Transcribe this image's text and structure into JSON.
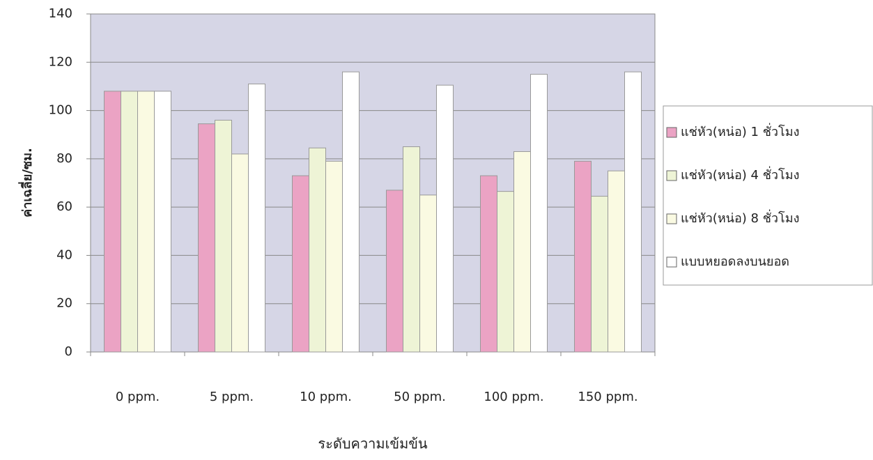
{
  "chart_data": {
    "type": "bar",
    "x_label": "ระดับความเข้มข้น",
    "y_label": "ค่าเฉลี่ย/ซม.",
    "categories": [
      "0 ppm.",
      "5 ppm.",
      "10 ppm.",
      "50 ppm.",
      "100 ppm.",
      "150 ppm."
    ],
    "series": [
      {
        "name": "แช่หัว(หน่อ) 1 ชั่วโมง",
        "color": "#eba3c4",
        "values": [
          108,
          94.5,
          73,
          67,
          73,
          79
        ]
      },
      {
        "name": "แช่หัว(หน่อ) 4 ชั่วโมง",
        "color": "#eef4d6",
        "values": [
          108,
          96,
          84.5,
          85,
          66.5,
          64.5
        ]
      },
      {
        "name": "แช่หัว(หน่อ) 8 ชั่วโมง",
        "color": "#fafae2",
        "values": [
          108,
          82,
          79,
          65,
          83,
          75
        ]
      },
      {
        "name": "แบบหยอดลงบนยอด",
        "color": "#ffffff",
        "values": [
          108,
          111,
          116,
          110.5,
          115,
          116
        ]
      }
    ],
    "ylim": [
      0,
      140
    ],
    "yticks": [
      0,
      20,
      40,
      60,
      80,
      100,
      120,
      140
    ],
    "grid": true,
    "legend": "right"
  }
}
